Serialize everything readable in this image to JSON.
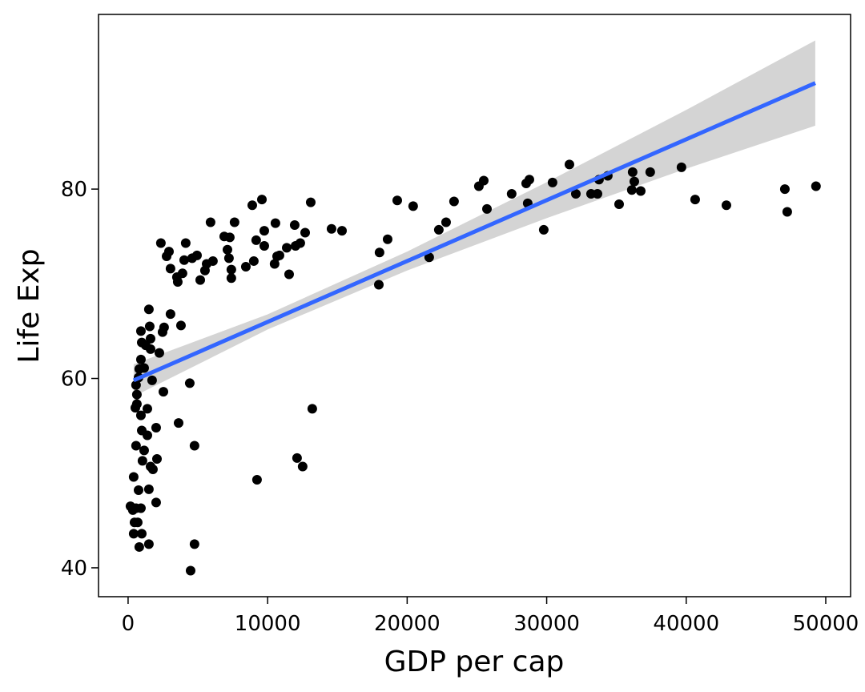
{
  "chart_data": {
    "type": "scatter",
    "x_label": "GDP per cap",
    "y_label": "Life Exp",
    "xlim": [
      -2120,
      51780
    ],
    "ylim": [
      36.95,
      98.45
    ],
    "xticks": [
      0,
      10000,
      20000,
      30000,
      40000,
      50000
    ],
    "yticks": [
      40,
      60,
      80
    ],
    "series": [
      {
        "color": "#000000",
        "x": [
          49300,
          47070,
          47240,
          42880,
          40640,
          39660,
          37420,
          36740,
          36280,
          36160,
          36100,
          35190,
          34380,
          33750,
          33640,
          33180,
          32090,
          31630,
          30420,
          29790,
          28760,
          28640,
          28530,
          27490,
          25720,
          25490,
          25140,
          23360,
          22790,
          22270,
          21580,
          20430,
          19290,
          18600,
          18020,
          17970,
          15330,
          14580,
          13200,
          13090,
          12690,
          12510,
          12340,
          12110,
          11940,
          12000,
          11540,
          11370,
          10850,
          10680,
          10500,
          10560,
          9760,
          9590,
          9760,
          9240,
          9180,
          9010,
          8900,
          8440,
          7630,
          7400,
          7400,
          7290,
          7230,
          7120,
          6890,
          6080,
          5910,
          5630,
          5510,
          5170,
          4940,
          4760,
          4760,
          4590,
          4480,
          4420,
          4130,
          4020,
          3900,
          3560,
          3500,
          3620,
          3790,
          3040,
          3040,
          2930,
          2760,
          2580,
          2530,
          2470,
          2350,
          2240,
          2070,
          2010,
          2010,
          1780,
          1720,
          1610,
          1610,
          1610,
          1550,
          1490,
          1490,
          1490,
          1380,
          1380,
          1260,
          1150,
          1150,
          1030,
          980,
          980,
          980,
          920,
          920,
          920,
          920,
          800,
          800,
          750,
          750,
          690,
          630,
          630,
          570,
          570,
          570,
          520,
          460,
          400,
          400,
          340,
          170
        ],
        "values": [
          80.3,
          80.0,
          77.6,
          78.3,
          78.9,
          82.3,
          81.8,
          79.8,
          80.8,
          81.8,
          79.9,
          78.4,
          81.4,
          81.0,
          79.5,
          79.5,
          79.5,
          82.6,
          80.7,
          75.7,
          81.0,
          78.5,
          80.6,
          79.5,
          77.9,
          80.9,
          80.3,
          78.7,
          76.5,
          75.7,
          72.8,
          78.2,
          78.8,
          74.7,
          73.3,
          69.9,
          75.6,
          75.8,
          56.8,
          78.6,
          75.4,
          50.7,
          74.3,
          51.6,
          76.2,
          74.0,
          71.0,
          73.8,
          73.0,
          72.9,
          72.1,
          76.4,
          75.6,
          78.9,
          74.0,
          49.3,
          74.6,
          72.4,
          78.3,
          71.8,
          76.5,
          70.6,
          71.5,
          74.9,
          72.7,
          73.6,
          75.0,
          72.4,
          76.5,
          72.1,
          71.4,
          70.4,
          73.0,
          42.5,
          52.9,
          72.7,
          39.7,
          59.5,
          74.3,
          72.5,
          71.1,
          70.2,
          70.7,
          55.3,
          65.6,
          71.6,
          66.8,
          73.4,
          72.9,
          65.4,
          58.6,
          64.9,
          74.3,
          62.7,
          51.5,
          46.9,
          54.8,
          50.4,
          59.8,
          64.2,
          50.7,
          63.1,
          65.5,
          42.5,
          67.3,
          48.3,
          54.0,
          56.8,
          63.5,
          52.4,
          61.1,
          51.3,
          63.8,
          54.5,
          43.6,
          65.0,
          56.1,
          46.3,
          62.0,
          61.0,
          42.2,
          48.2,
          60.1,
          44.8,
          57.3,
          58.3,
          59.3,
          46.3,
          52.9,
          56.9,
          44.8,
          43.6,
          49.6,
          46.1,
          46.5
        ]
      }
    ],
    "fit": {
      "color": "#3366ff",
      "band_color": "#cccccc",
      "x": [
        400,
        10000,
        20000,
        30000,
        40000,
        49250
      ],
      "y": [
        59.8,
        65.97,
        72.4,
        78.83,
        85.26,
        91.2
      ],
      "lower": [
        58.1,
        65.17,
        71.4,
        76.93,
        82.16,
        86.7
      ],
      "upper": [
        61.5,
        66.77,
        73.4,
        80.73,
        88.36,
        95.7
      ]
    }
  }
}
